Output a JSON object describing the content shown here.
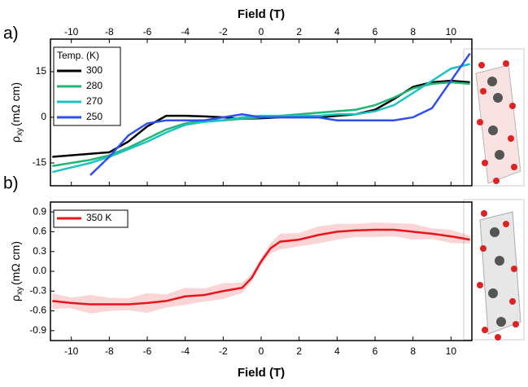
{
  "chart_data": [
    {
      "type": "line",
      "panel_label": "a)",
      "x_label": "Field (T)",
      "y_label": {
        "symbol": "ρ",
        "subscript": "xy",
        "unit": "(mΩ cm)"
      },
      "legend_title": "Temp. (K)",
      "legend": "upper left",
      "x": [
        -11,
        -10,
        -9,
        -8,
        -7,
        -6,
        -5,
        -4,
        -3,
        -2,
        -1,
        0,
        1,
        2,
        3,
        4,
        5,
        6,
        7,
        8,
        9,
        10,
        11
      ],
      "xlim": [
        -11.1,
        11.1
      ],
      "xticks": [
        -10,
        -8,
        -6,
        -4,
        -2,
        0,
        2,
        4,
        6,
        8,
        10
      ],
      "ylim": [
        -22.5,
        25.7
      ],
      "yticks": [
        -15,
        0,
        15
      ],
      "series": [
        {
          "name": "300",
          "color": "#000000",
          "values": [
            -13,
            -12.5,
            -12,
            -11.5,
            -8,
            -3,
            0.5,
            0.5,
            0.3,
            0,
            -0.5,
            -0.3,
            0,
            0,
            0,
            0.5,
            1,
            2.5,
            6,
            10,
            11.5,
            12,
            11.5
          ]
        },
        {
          "name": "280",
          "color": "#22b573",
          "values": [
            -16,
            -15,
            -14,
            -12.5,
            -10,
            -7,
            -4,
            -2,
            -1,
            -1,
            -0.5,
            0,
            0.5,
            1,
            1.5,
            2,
            2.5,
            4,
            6.5,
            9.5,
            11,
            11.5,
            11
          ]
        },
        {
          "name": "270",
          "color": "#1fc2c2",
          "values": [
            -18,
            -16.5,
            -15,
            -13,
            -10.5,
            -8,
            -5,
            -2.5,
            -1.5,
            -1,
            0,
            0.5,
            0.5,
            0.5,
            0.5,
            1,
            1,
            2,
            4,
            8,
            12,
            16,
            17.5
          ]
        },
        {
          "name": "250",
          "color": "#2f4ff0",
          "values": [
            null,
            null,
            -19,
            -13,
            -6,
            -2,
            -1,
            -1,
            -1,
            0,
            1,
            0,
            0,
            0,
            0,
            -1,
            -1,
            -1,
            -1,
            0,
            3,
            12,
            21
          ]
        }
      ]
    },
    {
      "type": "line",
      "panel_label": "b)",
      "x_label": "Field (T)",
      "y_label": {
        "symbol": "ρ",
        "subscript": "xy",
        "unit": "(mΩ cm)"
      },
      "legend": "upper left",
      "x": [
        -11,
        -10,
        -9,
        -8,
        -7,
        -6,
        -5,
        -4,
        -3,
        -2,
        -1,
        -0.5,
        0,
        0.5,
        1,
        2,
        3,
        4,
        5,
        6,
        7,
        8,
        9,
        10,
        11
      ],
      "xlim": [
        -11.1,
        11.1
      ],
      "xticks": [
        -10,
        -8,
        -6,
        -4,
        -2,
        0,
        2,
        4,
        6,
        8,
        10
      ],
      "ylim": [
        -1.05,
        1.05
      ],
      "yticks": [
        -0.9,
        -0.6,
        -0.3,
        {
          "value": 0,
          "label": "0.0"
        },
        0.3,
        0.6,
        0.9
      ],
      "series": [
        {
          "name": "350 K",
          "color": "#e8141c",
          "values": [
            -0.45,
            -0.48,
            -0.5,
            -0.5,
            -0.5,
            -0.48,
            -0.45,
            -0.38,
            -0.36,
            -0.3,
            -0.25,
            -0.1,
            0.15,
            0.35,
            0.45,
            0.48,
            0.55,
            0.6,
            0.62,
            0.63,
            0.63,
            0.6,
            0.57,
            0.53,
            0.48
          ],
          "errors": [
            0.12,
            0.08,
            0.14,
            0.1,
            0.09,
            0.15,
            0.1,
            0.13,
            0.1,
            0.12,
            0.08,
            0.06,
            0.05,
            0.08,
            0.12,
            0.1,
            0.13,
            0.12,
            0.1,
            0.11,
            0.1,
            0.12,
            0.08,
            0.1,
            0.06
          ]
        }
      ]
    }
  ]
}
